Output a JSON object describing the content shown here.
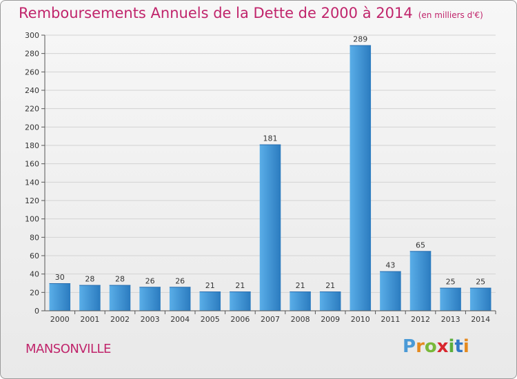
{
  "header": {
    "title": "Remboursements Annuels de la Dette de 2000 à 2014",
    "subtitle": "(en milliers d'€)"
  },
  "footer": {
    "city": "MANSONVILLE",
    "logo": {
      "p": "P",
      "r": "r",
      "o": "o",
      "x": "x",
      "i1": "i",
      "t": "t",
      "i2": "i"
    }
  },
  "colors": {
    "title": "#c0246b",
    "bar_light": "#5aaee8",
    "bar_dark": "#2b7bbf"
  },
  "chart_data": {
    "type": "bar",
    "title": "Remboursements Annuels de la Dette de 2000 à 2014",
    "subtitle": "(en milliers d'€)",
    "categories": [
      "2000",
      "2001",
      "2002",
      "2003",
      "2004",
      "2005",
      "2006",
      "2007",
      "2008",
      "2009",
      "2010",
      "2011",
      "2012",
      "2013",
      "2014"
    ],
    "values": [
      30,
      28,
      28,
      26,
      26,
      21,
      21,
      181,
      21,
      21,
      289,
      43,
      65,
      25,
      25
    ],
    "ylim": [
      0,
      300
    ],
    "yticks": [
      0,
      20,
      40,
      60,
      80,
      100,
      120,
      140,
      160,
      180,
      200,
      220,
      240,
      260,
      280,
      300
    ],
    "grid": true,
    "legend": "none"
  }
}
